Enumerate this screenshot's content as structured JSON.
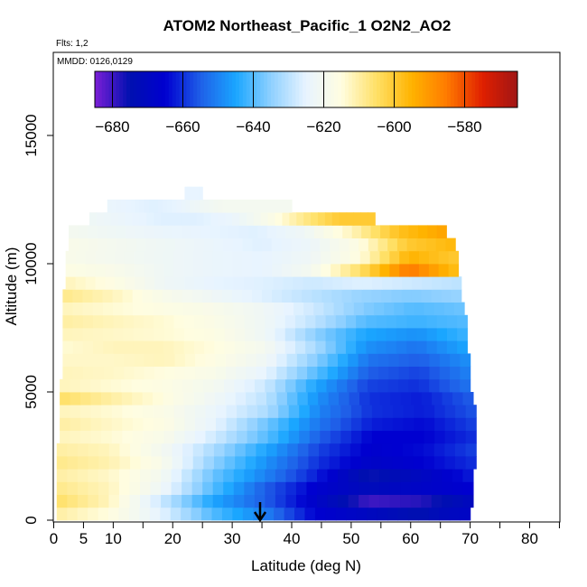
{
  "chart_data": {
    "type": "heatmap",
    "title": "ATOM2 Northeast_Pacific_1 O2N2_AO2",
    "flights_label": "Flts: 1,2",
    "dates_label": "MMDD: 0126,0129",
    "xlabel": "Latitude (deg N)",
    "ylabel": "Altitude (m)",
    "xlim": [
      0,
      85
    ],
    "ylim": [
      0,
      17500
    ],
    "x_ticks": [
      0,
      5,
      10,
      20,
      30,
      40,
      50,
      60,
      70,
      80
    ],
    "x_minor_ticks": [
      15,
      25,
      35,
      45,
      55,
      65,
      75,
      85
    ],
    "y_ticks": [
      0,
      5000,
      10000,
      15000
    ],
    "colorbar": {
      "range": [
        -685,
        -565
      ],
      "ticks": [
        -680,
        -660,
        -640,
        -620,
        -600,
        -580
      ],
      "colors": [
        "#7b1fd6",
        "#0010b0",
        "#0000d0",
        "#1f5fe8",
        "#1aa6ff",
        "#8fd0ff",
        "#e8f4ff",
        "#fffde0",
        "#ffe066",
        "#ffb300",
        "#ff7a00",
        "#e02000",
        "#a01515"
      ]
    },
    "marker": {
      "latitude": 34.5,
      "label": "↓"
    },
    "profile": [
      {
        "alt": 250,
        "lat_min": 0.5,
        "lat_max": 70,
        "values": [
          -610,
          -615,
          -625,
          -640,
          -650,
          -665,
          -670,
          -675,
          -668
        ]
      },
      {
        "alt": 750,
        "lat_min": 0.5,
        "lat_max": 70.5,
        "values": [
          -605,
          -612,
          -628,
          -645,
          -655,
          -668,
          -680,
          -678,
          -670
        ]
      },
      {
        "alt": 1250,
        "lat_min": 0.5,
        "lat_max": 70.5,
        "values": [
          -608,
          -612,
          -622,
          -640,
          -655,
          -666,
          -672,
          -668,
          -665
        ]
      },
      {
        "alt": 1750,
        "lat_min": 0.5,
        "lat_max": 70.5,
        "values": [
          -610,
          -613,
          -620,
          -638,
          -650,
          -662,
          -676,
          -670,
          -662
        ]
      },
      {
        "alt": 2250,
        "lat_min": 0.5,
        "lat_max": 71,
        "values": [
          -608,
          -611,
          -618,
          -635,
          -648,
          -660,
          -668,
          -665,
          -660
        ]
      },
      {
        "alt": 2750,
        "lat_min": 0.5,
        "lat_max": 71,
        "values": [
          -610,
          -612,
          -620,
          -632,
          -645,
          -658,
          -666,
          -664,
          -658
        ]
      },
      {
        "alt": 3250,
        "lat_min": 1,
        "lat_max": 71,
        "values": [
          -612,
          -614,
          -618,
          -628,
          -640,
          -655,
          -665,
          -665,
          -660
        ]
      },
      {
        "alt": 3750,
        "lat_min": 1,
        "lat_max": 71,
        "values": [
          -610,
          -613,
          -616,
          -625,
          -638,
          -652,
          -662,
          -664,
          -658
        ]
      },
      {
        "alt": 4250,
        "lat_min": 1,
        "lat_max": 71,
        "values": [
          -612,
          -614,
          -617,
          -624,
          -632,
          -650,
          -660,
          -662,
          -656
        ]
      },
      {
        "alt": 4750,
        "lat_min": 1,
        "lat_max": 70.5,
        "values": [
          -605,
          -610,
          -615,
          -622,
          -630,
          -648,
          -660,
          -662,
          -655
        ]
      },
      {
        "alt": 5250,
        "lat_min": 1,
        "lat_max": 70,
        "values": [
          -612,
          -614,
          -616,
          -620,
          -628,
          -645,
          -658,
          -660,
          -652
        ]
      },
      {
        "alt": 5750,
        "lat_min": 1.5,
        "lat_max": 70,
        "values": [
          -612,
          -613,
          -615,
          -618,
          -625,
          -640,
          -655,
          -658,
          -650
        ]
      },
      {
        "alt": 6250,
        "lat_min": 1.5,
        "lat_max": 70,
        "values": [
          -613,
          -613,
          -612,
          -616,
          -622,
          -636,
          -652,
          -655,
          -648
        ]
      },
      {
        "alt": 6750,
        "lat_min": 1.5,
        "lat_max": 69.5,
        "values": [
          -614,
          -612,
          -612,
          -615,
          -620,
          -632,
          -648,
          -652,
          -645
        ]
      },
      {
        "alt": 7250,
        "lat_min": 1.5,
        "lat_max": 69.5,
        "values": [
          -612,
          -613,
          -614,
          -616,
          -622,
          -635,
          -645,
          -648,
          -642
        ]
      },
      {
        "alt": 7750,
        "lat_min": 1.5,
        "lat_max": 69.5,
        "values": [
          -610,
          -612,
          -614,
          -617,
          -622,
          -630,
          -640,
          -642,
          -640
        ]
      },
      {
        "alt": 8250,
        "lat_min": 1.5,
        "lat_max": 69,
        "values": [
          -612,
          -614,
          -616,
          -618,
          -622,
          -628,
          -636,
          -640,
          -638
        ]
      },
      {
        "alt": 8750,
        "lat_min": 1.5,
        "lat_max": 68.5,
        "values": [
          -608,
          -612,
          -618,
          -622,
          -626,
          -630,
          -634,
          -636,
          -634
        ]
      },
      {
        "alt": 9250,
        "lat_min": 2,
        "lat_max": 68.5,
        "values": [
          -612,
          -616,
          -622,
          -625,
          -626,
          -628,
          -626,
          -628,
          -630
        ]
      },
      {
        "alt": 9750,
        "lat_min": 2,
        "lat_max": 68,
        "values": [
          -616,
          -618,
          -622,
          -624,
          -625,
          -620,
          -605,
          -585,
          -598
        ]
      },
      {
        "alt": 10250,
        "lat_min": 2,
        "lat_max": 68,
        "values": [
          -618,
          -620,
          -622,
          -624,
          -625,
          -622,
          -615,
          -595,
          -600
        ]
      },
      {
        "alt": 10750,
        "lat_min": 2.5,
        "lat_max": 67.5,
        "values": [
          -618,
          -620,
          -622,
          -624,
          -626,
          -623,
          -616,
          -600,
          -596
        ]
      },
      {
        "alt": 11250,
        "lat_min": 2.5,
        "lat_max": 66,
        "values": [
          -620,
          -622,
          -624,
          -625,
          -626,
          -622,
          -612,
          -598,
          -592
        ]
      },
      {
        "alt": 11750,
        "lat_min": 6,
        "lat_max": 54,
        "values": [
          -622,
          -624,
          -626,
          -626,
          -624,
          -618,
          -608,
          -600,
          -600
        ]
      },
      {
        "alt": 12250,
        "lat_min": 9,
        "lat_max": 40,
        "values": [
          -624,
          -625,
          -626,
          -625,
          -622,
          -620,
          -620,
          -620,
          -620
        ]
      },
      {
        "alt": 12750,
        "lat_min": 22,
        "lat_max": 25,
        "values": [
          -625,
          -625,
          -625,
          -625,
          -625,
          -625,
          -625,
          -625,
          -625
        ]
      }
    ]
  }
}
